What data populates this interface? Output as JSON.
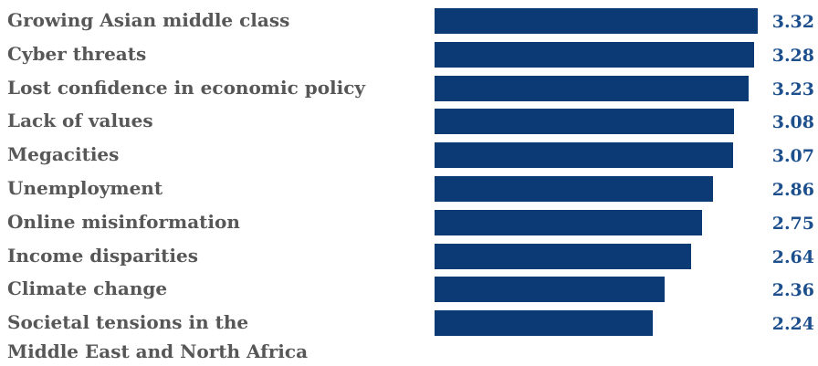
{
  "chart_data": {
    "type": "bar",
    "orientation": "horizontal",
    "categories": [
      "Growing Asian middle class",
      "Cyber threats",
      "Lost confidence in economic policy",
      "Lack of values",
      "Megacities",
      "Unemployment",
      "Online misinformation",
      "Income disparities",
      "Climate change",
      "Societal tensions in the\nMiddle East and North Africa"
    ],
    "values": [
      3.32,
      3.28,
      3.23,
      3.08,
      3.07,
      2.86,
      2.75,
      2.64,
      2.36,
      2.24
    ],
    "value_labels": [
      "3.32",
      "3.28",
      "3.23",
      "3.08",
      "3.07",
      "2.86",
      "2.75",
      "2.64",
      "2.36",
      "2.24"
    ],
    "title": "",
    "xlabel": "",
    "ylabel": "",
    "xlim": [
      0,
      3.6
    ],
    "grid": false,
    "legend": "none",
    "colors": {
      "bar": "#0b3a75",
      "label": "#575757",
      "value": "#1c4f8c"
    }
  }
}
